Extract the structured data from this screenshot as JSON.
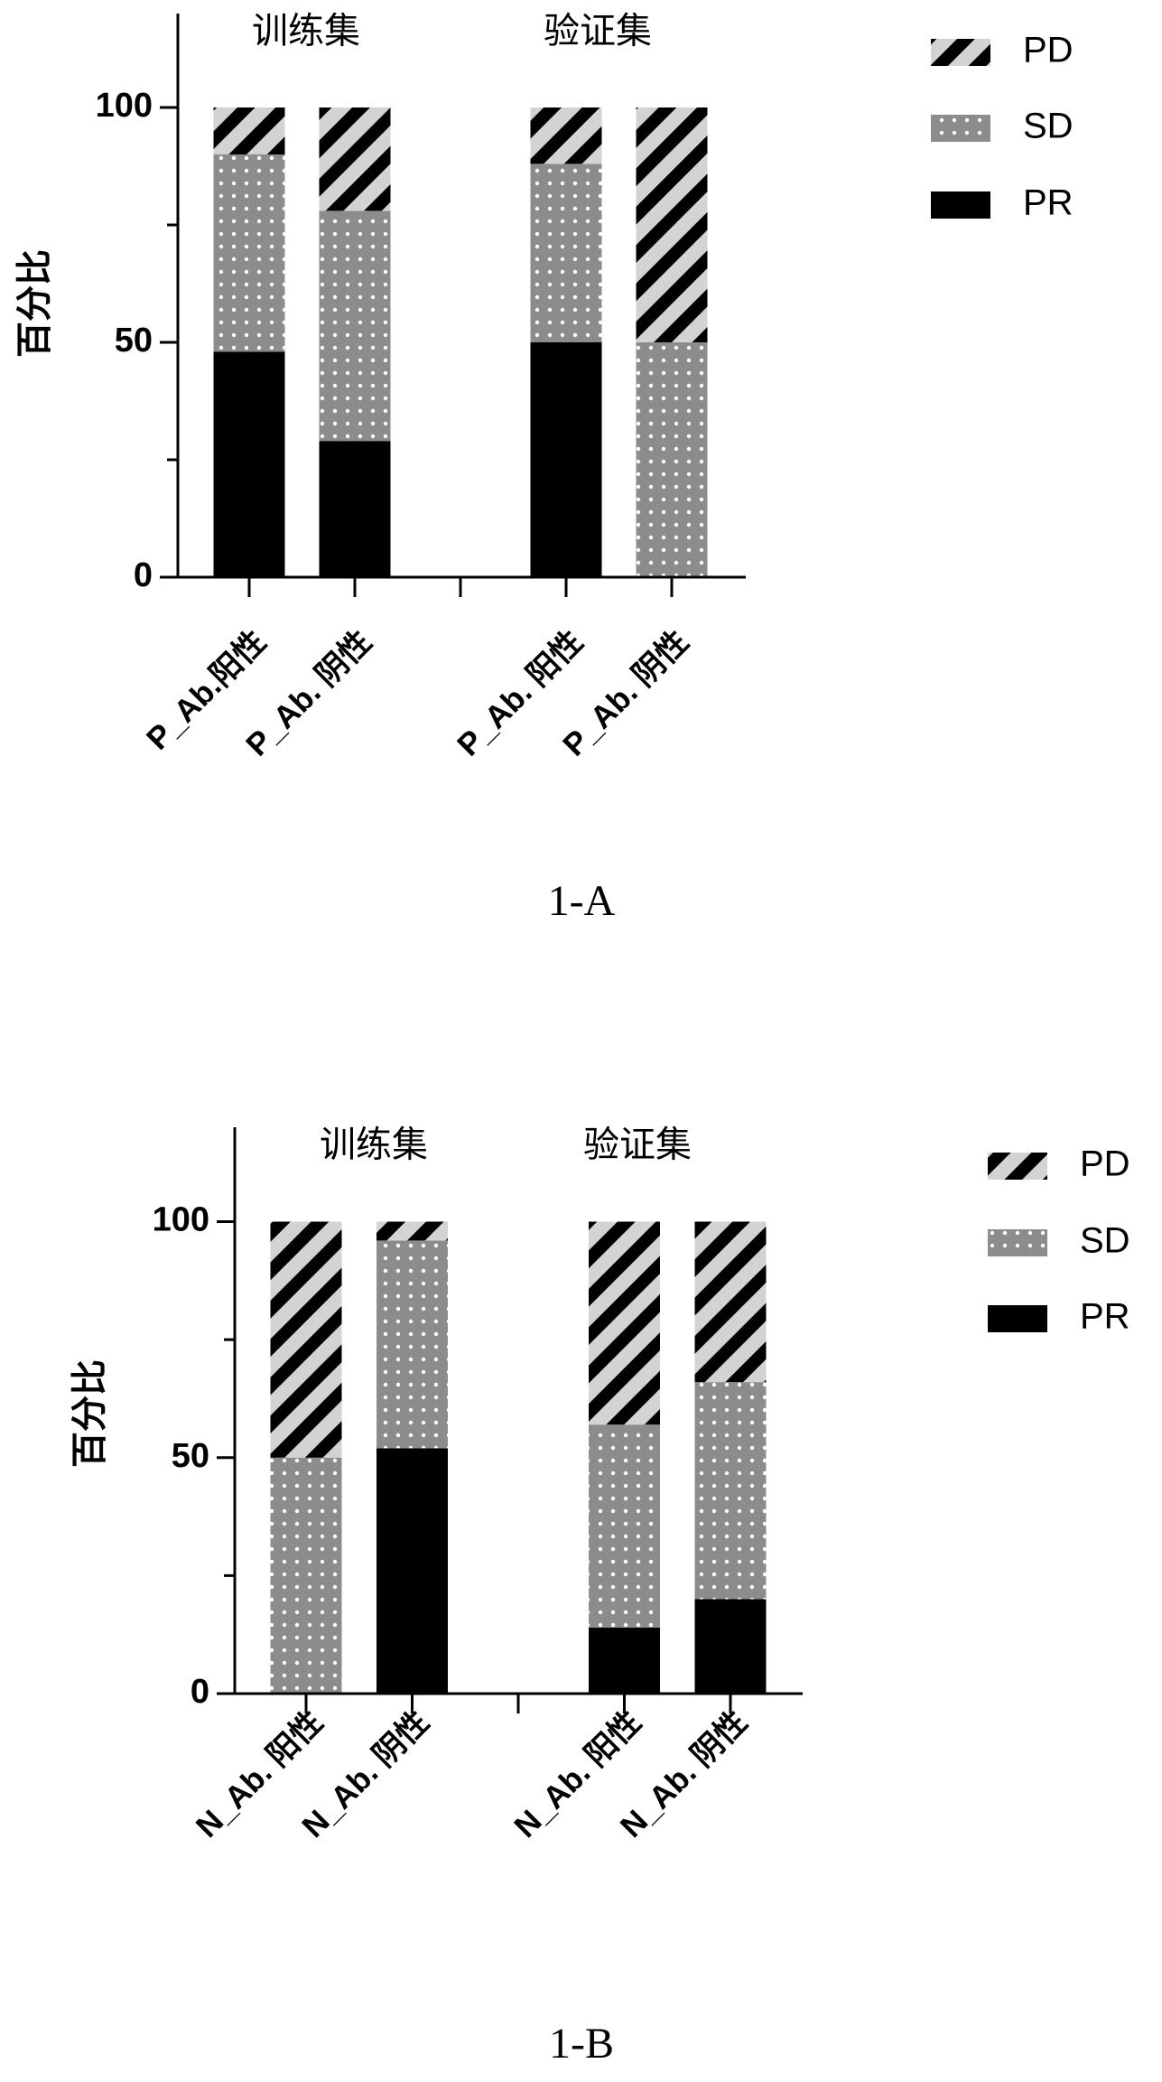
{
  "chart_data": [
    {
      "type": "bar",
      "stacked": true,
      "categories": [
        "P_Ab.阳性",
        "P_Ab. 阴性",
        null,
        "P_Ab. 阳性",
        "P_Ab. 阴性"
      ],
      "group_labels": [
        "训练集",
        "验证集"
      ],
      "ylabel": "百分比",
      "caption": "1-A",
      "ylim": [
        0,
        120
      ],
      "yticks": [
        0,
        50,
        100
      ],
      "minor_yticks": [
        25,
        75
      ],
      "series": [
        {
          "name": "PR",
          "color": "#000000",
          "values": [
            48,
            29,
            null,
            50,
            0
          ]
        },
        {
          "name": "SD",
          "color": "#8c8c8c",
          "values": [
            42,
            49,
            null,
            38,
            50
          ]
        },
        {
          "name": "PD",
          "color": "#d3d3d3",
          "values": [
            10,
            22,
            null,
            12,
            50
          ]
        }
      ]
    },
    {
      "type": "bar",
      "stacked": true,
      "categories": [
        "N_Ab. 阳性",
        "N_Ab. 阴性",
        null,
        "N_Ab. 阳性",
        "N_Ab. 阴性"
      ],
      "group_labels": [
        "训练集",
        "验证集"
      ],
      "ylabel": "百分比",
      "caption": "1-B",
      "ylim": [
        0,
        120
      ],
      "yticks": [
        0,
        50,
        100
      ],
      "minor_yticks": [
        25,
        75
      ],
      "series": [
        {
          "name": "PR",
          "color": "#000000",
          "values": [
            0,
            52,
            null,
            14,
            20
          ]
        },
        {
          "name": "SD",
          "color": "#8c8c8c",
          "values": [
            50,
            44,
            null,
            43,
            46
          ]
        },
        {
          "name": "PD",
          "color": "#d3d3d3",
          "values": [
            50,
            4,
            null,
            43,
            34
          ]
        }
      ]
    }
  ]
}
